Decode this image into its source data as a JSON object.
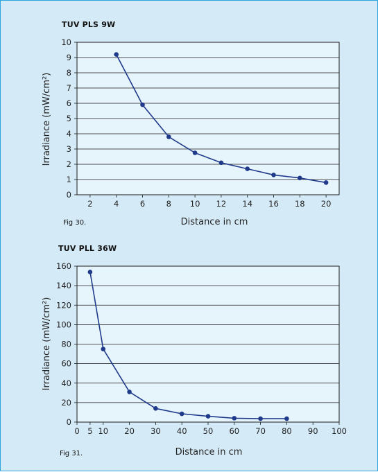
{
  "colors": {
    "panel_background": "#d5eaf7",
    "panel_border": "#2ea3dd",
    "plot_background": "#e6f4fc",
    "plot_border": "#1a1a1a",
    "gridlines": "#1a1a1a",
    "series_line": "#1f3a8a",
    "markers": "#1f3a8a"
  },
  "chart_data": [
    {
      "type": "line",
      "title": "TUV PLS 9W",
      "caption": "Fig 30.",
      "xlabel": "Distance in cm",
      "ylabel": "Irradiance (mW/cm²)",
      "xlim": [
        1,
        21
      ],
      "ylim": [
        0,
        10
      ],
      "xticks": [
        2,
        4,
        6,
        8,
        10,
        12,
        14,
        16,
        18,
        20
      ],
      "yticks": [
        0,
        1,
        2,
        3,
        4,
        5,
        6,
        7,
        8,
        9,
        10
      ],
      "grid": "horizontal",
      "series": [
        {
          "x": [
            4,
            6,
            8,
            10,
            12,
            14,
            16,
            18,
            20
          ],
          "y": [
            9.2,
            5.9,
            3.8,
            2.75,
            2.1,
            1.7,
            1.3,
            1.1,
            0.8
          ]
        }
      ]
    },
    {
      "type": "line",
      "title": "TUV PLL 36W",
      "caption": "Fig 31.",
      "xlabel": "Distance in cm",
      "ylabel": "Irradiance (mW/cm²)",
      "xlim": [
        0,
        100
      ],
      "ylim": [
        0,
        160
      ],
      "xticks": [
        0,
        5,
        10,
        20,
        30,
        40,
        50,
        60,
        70,
        80,
        90,
        100
      ],
      "yticks": [
        0,
        20,
        40,
        60,
        80,
        100,
        120,
        140,
        160
      ],
      "grid": "horizontal",
      "series": [
        {
          "x": [
            5,
            10,
            20,
            30,
            40,
            50,
            60,
            70,
            80
          ],
          "y": [
            154,
            75,
            31,
            14,
            8.5,
            6,
            4,
            3.5,
            3.5
          ]
        }
      ]
    }
  ]
}
